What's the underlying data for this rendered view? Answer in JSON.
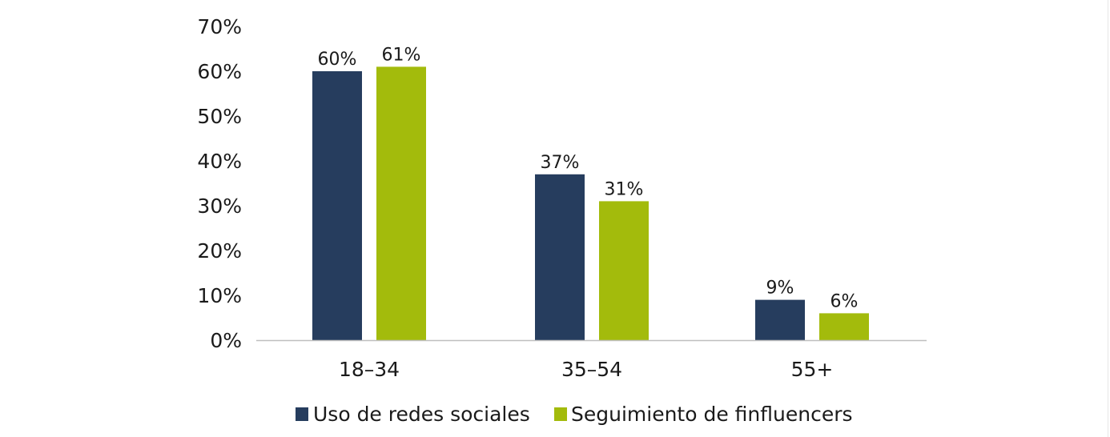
{
  "chart_data": {
    "type": "bar",
    "categories": [
      "18–34",
      "35–54",
      "55+"
    ],
    "series": [
      {
        "name": "Uso de redes sociales",
        "values": [
          60,
          37,
          9
        ],
        "labels": [
          "60%",
          "37%",
          "9%"
        ],
        "color": "#263d5e"
      },
      {
        "name": "Seguimiento de finfluencers",
        "values": [
          61,
          31,
          6
        ],
        "labels": [
          "61%",
          "31%",
          "6%"
        ],
        "color": "#a3bb0c"
      }
    ],
    "y_ticks": [
      0,
      10,
      20,
      30,
      40,
      50,
      60,
      70
    ],
    "y_tick_labels": [
      "0%",
      "10%",
      "20%",
      "30%",
      "40%",
      "50%",
      "60%",
      "70%"
    ],
    "ylim": [
      0,
      70
    ],
    "grid": false,
    "legend_position": "bottom",
    "axis_color": "#bfbfbf"
  }
}
